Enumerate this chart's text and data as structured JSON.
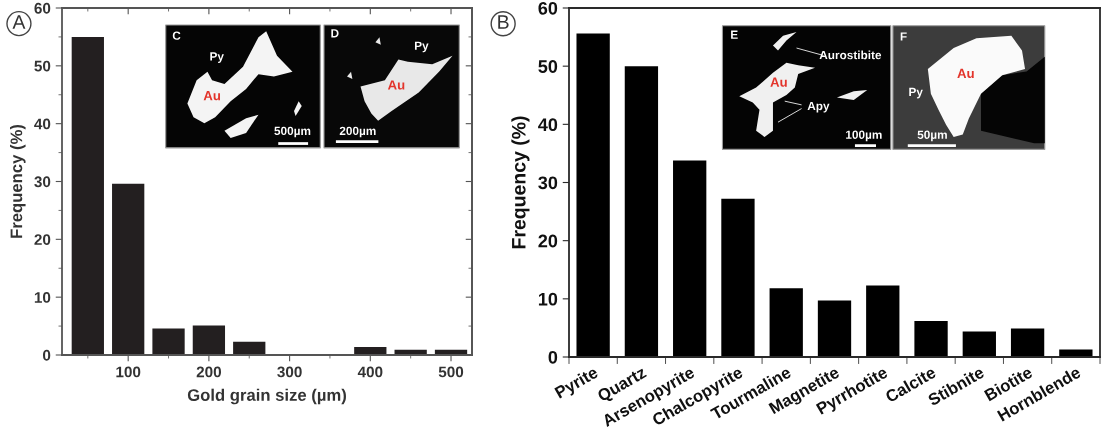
{
  "chart_data": [
    {
      "type": "bar",
      "xlabel": "Gold grain size (µm)",
      "ylabel": "Frequency (%)",
      "x": [
        50,
        100,
        150,
        200,
        250,
        400,
        450,
        500
      ],
      "values": [
        55,
        29.6,
        4.6,
        5.1,
        2.3,
        1.4,
        0.9,
        0.9
      ],
      "color": "#231f20",
      "xlim": [
        18,
        526
      ],
      "xticks": [
        {
          "value": 50,
          "label": null
        },
        100,
        {
          "value": 150,
          "label": null
        },
        200,
        {
          "value": 250,
          "label": null
        },
        300,
        {
          "value": 350,
          "label": null
        },
        400,
        {
          "value": 450,
          "label": null
        },
        500
      ],
      "ylim": [
        0,
        60
      ],
      "yticks": [
        0,
        {
          "value": 5,
          "label": null
        },
        10,
        {
          "value": 15,
          "label": null
        },
        20,
        {
          "value": 25,
          "label": null
        },
        30,
        {
          "value": 35,
          "label": null
        },
        40,
        {
          "value": 45,
          "label": null
        },
        50,
        {
          "value": 55,
          "label": null
        },
        60
      ],
      "annotations": [
        "A",
        "C",
        "Py",
        "Au",
        "500µm",
        "D",
        "Py",
        "Au",
        "200µm"
      ]
    },
    {
      "type": "bar",
      "ylabel": "Frequency (%)",
      "categories": [
        "Pyrite",
        "Quartz",
        "Arsenopyrite",
        "Chalcopyrite",
        "Tourmaline",
        "Magnetite",
        "Pyrrhotite",
        "Calcite",
        "Stibnite",
        "Biotite",
        "Hornblende"
      ],
      "values": [
        55.6,
        50,
        33.8,
        27.2,
        11.8,
        9.7,
        12.3,
        6.2,
        4.4,
        4.9,
        1.3
      ],
      "color": "#000000",
      "ylim": [
        0,
        60
      ],
      "yticks": [
        0,
        10,
        20,
        30,
        40,
        50,
        60
      ],
      "annotations": [
        "B",
        "E",
        "Aurostibite",
        "Au",
        "Apy",
        "100µm",
        "F",
        "Py",
        "Au",
        "50µm"
      ]
    }
  ]
}
